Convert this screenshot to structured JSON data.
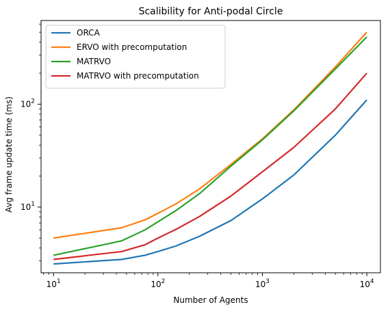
{
  "chart_data": {
    "type": "line",
    "title": "Scalibility for Anti-podal Circle",
    "xlabel": "Number of Agents",
    "ylabel": "Avg frame update time (ms)",
    "xscale": "log",
    "yscale": "log",
    "xlim": [
      7.6,
      13500
    ],
    "ylim": [
      2.3,
      650
    ],
    "x_ticks": [
      {
        "value": 10,
        "base": "10",
        "exp": "1"
      },
      {
        "value": 100,
        "base": "10",
        "exp": "2"
      },
      {
        "value": 1000,
        "base": "10",
        "exp": "3"
      },
      {
        "value": 10000,
        "base": "10",
        "exp": "4"
      }
    ],
    "y_ticks": [
      {
        "value": 10,
        "base": "10",
        "exp": "1"
      },
      {
        "value": 100,
        "base": "10",
        "exp": "2"
      }
    ],
    "grid": false,
    "legend_position": "top-left",
    "series": [
      {
        "name": "ORCA",
        "color": "#1f77b4",
        "x": [
          10,
          45,
          75,
          100,
          150,
          250,
          500,
          1000,
          2000,
          5000,
          10000
        ],
        "y": [
          2.8,
          3.1,
          3.4,
          3.7,
          4.2,
          5.2,
          7.4,
          12.0,
          20.5,
          50.0,
          110.0
        ]
      },
      {
        "name": "ERVO with precomputation",
        "color": "#ff7f0e",
        "x": [
          10,
          45,
          75,
          100,
          150,
          250,
          500,
          1000,
          2000,
          5000,
          10000
        ],
        "y": [
          5.0,
          6.3,
          7.5,
          8.7,
          10.8,
          15.0,
          26.0,
          46.0,
          88.0,
          230.0,
          500.0
        ]
      },
      {
        "name": "MATRVO",
        "color": "#2ca02c",
        "x": [
          10,
          45,
          75,
          100,
          150,
          250,
          500,
          1000,
          2000,
          5000,
          10000
        ],
        "y": [
          3.4,
          4.7,
          6.0,
          7.2,
          9.3,
          13.5,
          25.0,
          45.0,
          86.0,
          220.0,
          450.0
        ]
      },
      {
        "name": "MATRVO with precomputation",
        "color": "#d62728",
        "x": [
          10,
          45,
          75,
          100,
          150,
          250,
          500,
          1000,
          2000,
          5000,
          10000
        ],
        "y": [
          3.1,
          3.7,
          4.3,
          5.0,
          6.1,
          8.1,
          12.8,
          22.0,
          38.0,
          90.0,
          200.0
        ]
      }
    ]
  }
}
